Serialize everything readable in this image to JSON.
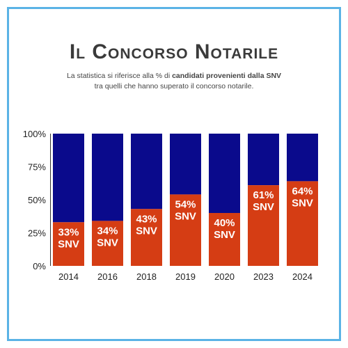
{
  "title": "Il Concorso Notarile",
  "subtitle": {
    "line1_pre": "La statistica si riferisce alla % di ",
    "line1_bold": "candidati provenienti dalla SNV",
    "line2": "tra quelli che hanno superato il concorso notarile."
  },
  "colors": {
    "frame": "#5ab3e6",
    "snv": "#d53d14",
    "rest": "#0a0a8c",
    "label": "#ffffff",
    "axis": "#222222"
  },
  "chart_data": {
    "type": "bar",
    "stacked": true,
    "categories": [
      "2014",
      "2016",
      "2018",
      "2019",
      "2020",
      "2023",
      "2024"
    ],
    "series": [
      {
        "values": [
          33,
          34,
          43,
          54,
          40,
          61,
          64
        ]
      },
      {
        "values": [
          67,
          66,
          57,
          46,
          60,
          39,
          36
        ]
      }
    ],
    "data_labels": [
      "33%\nSNV",
      "34%\nSNV",
      "43%\nSNV",
      "54%\nSNV",
      "40%\nSNV",
      "61%\nSNV",
      "64%\nSNV"
    ],
    "yticks": [
      "0%",
      "25%",
      "50%",
      "75%",
      "100%"
    ],
    "ylim": [
      0,
      100
    ],
    "grid": false,
    "legend": "none"
  }
}
